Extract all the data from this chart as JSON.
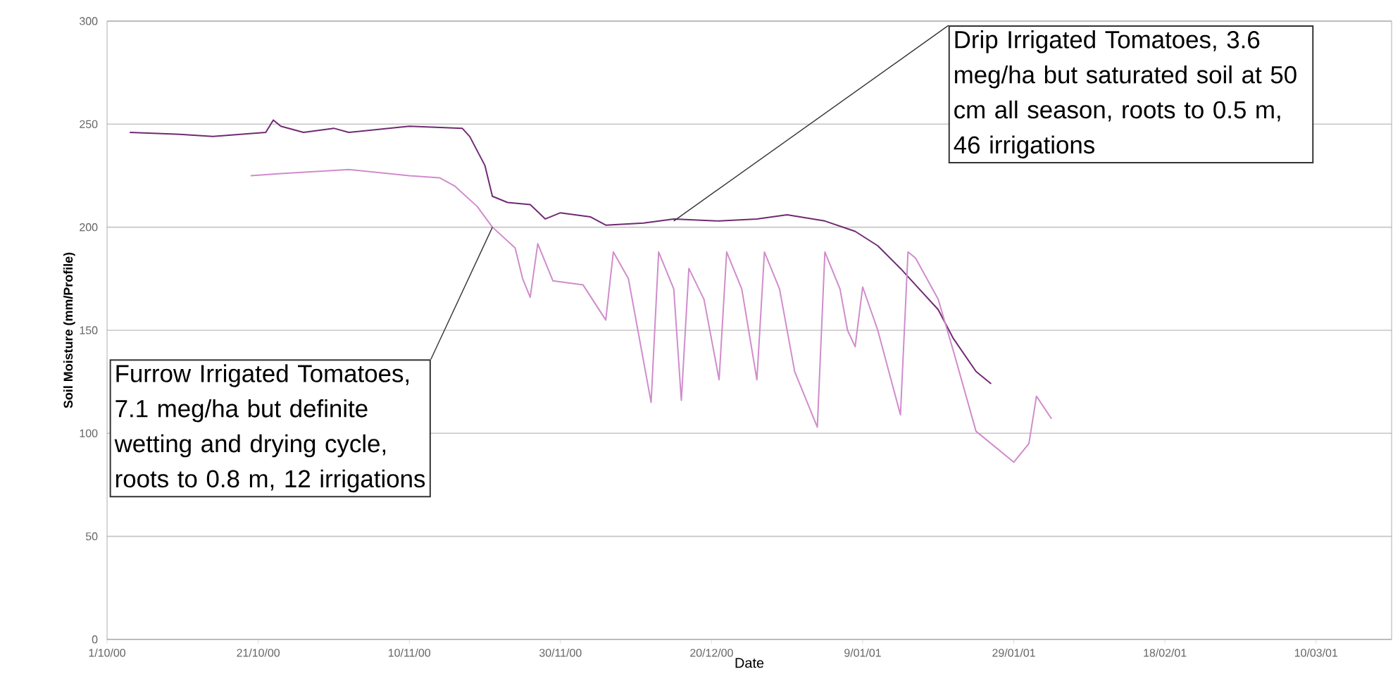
{
  "chart_data": {
    "type": "line",
    "xlabel": "Date",
    "ylabel": "Soil Moisture (mm/Profile)",
    "xlim": [
      "2000-10-01",
      "2001-03-20"
    ],
    "xticks": [
      {
        "value": "2000-10-01",
        "label": "1/10/00"
      },
      {
        "value": "2000-10-21",
        "label": "21/10/00"
      },
      {
        "value": "2000-11-10",
        "label": "10/11/00"
      },
      {
        "value": "2000-11-30",
        "label": "30/11/00"
      },
      {
        "value": "2000-12-20",
        "label": "20/12/00"
      },
      {
        "value": "2001-01-09",
        "label": "9/01/01"
      },
      {
        "value": "2001-01-29",
        "label": "29/01/01"
      },
      {
        "value": "2001-02-18",
        "label": "18/02/01"
      },
      {
        "value": "2001-03-10",
        "label": "10/03/01"
      }
    ],
    "ylim": [
      0,
      300
    ],
    "yticks": [
      0,
      50,
      100,
      150,
      200,
      250,
      300
    ],
    "grid": "y",
    "line_style": "solid",
    "series": [
      {
        "color": "#702a72",
        "x": [
          "2000-10-04",
          "2000-10-11",
          "2000-10-15",
          "2000-10-22",
          "2000-10-23",
          "2000-10-24",
          "2000-10-27",
          "2000-10-31",
          "2000-11-02",
          "2000-11-10",
          "2000-11-17",
          "2000-11-18",
          "2000-11-20",
          "2000-11-21",
          "2000-11-23",
          "2000-11-26",
          "2000-11-28",
          "2000-11-30",
          "2000-12-04",
          "2000-12-06",
          "2000-12-11",
          "2000-12-15",
          "2000-12-21",
          "2000-12-26",
          "2000-12-30",
          "2001-01-04",
          "2001-01-08",
          "2001-01-11",
          "2001-01-14",
          "2001-01-16",
          "2001-01-19",
          "2001-01-21",
          "2001-01-24",
          "2001-01-26"
        ],
        "values": [
          246,
          245,
          244,
          246,
          252,
          249,
          246,
          248,
          246,
          249,
          248,
          244,
          230,
          215,
          212,
          211,
          204,
          207,
          205,
          201,
          202,
          204,
          203,
          204,
          206,
          203,
          198,
          191,
          180,
          172,
          160,
          146,
          130,
          124
        ]
      },
      {
        "color": "#d08ccc",
        "x": [
          "2000-10-20",
          "2000-10-24",
          "2000-11-02",
          "2000-11-10",
          "2000-11-14",
          "2000-11-16",
          "2000-11-19",
          "2000-11-21",
          "2000-11-24",
          "2000-11-25",
          "2000-11-26",
          "2000-11-27",
          "2000-11-29",
          "2000-12-03",
          "2000-12-06",
          "2000-12-07",
          "2000-12-09",
          "2000-12-12",
          "2000-12-13",
          "2000-12-15",
          "2000-12-16",
          "2000-12-17",
          "2000-12-19",
          "2000-12-21",
          "2000-12-22",
          "2000-12-24",
          "2000-12-26",
          "2000-12-27",
          "2000-12-29",
          "2000-12-31",
          "2001-01-03",
          "2001-01-04",
          "2001-01-06",
          "2001-01-07",
          "2001-01-08",
          "2001-01-09",
          "2001-01-11",
          "2001-01-14",
          "2001-01-15",
          "2001-01-16",
          "2001-01-19",
          "2001-01-21",
          "2001-01-24",
          "2001-01-29",
          "2001-01-31",
          "2001-02-01",
          "2001-02-03"
        ],
        "values": [
          225,
          226,
          228,
          225,
          224,
          220,
          210,
          200,
          190,
          175,
          166,
          192,
          174,
          172,
          155,
          188,
          175,
          115,
          188,
          170,
          116,
          180,
          165,
          126,
          188,
          170,
          126,
          188,
          170,
          130,
          103,
          188,
          170,
          150,
          142,
          171,
          150,
          109,
          188,
          185,
          165,
          140,
          101,
          86,
          95,
          118,
          107
        ]
      }
    ],
    "annotations": [
      {
        "text": "Drip Irrigated Tomatoes, 3.6 meg/ha but saturated soil  at 50 cm all season, roots to 0.5 m, 46 irrigations",
        "x": "2000-12-15",
        "y": 203
      },
      {
        "text": "Furrow Irrigated Tomatoes, 7.1 meg/ha but definite wetting and drying cycle, roots to 0.8 m, 12 irrigations",
        "x": "2000-11-21",
        "y": 200
      }
    ]
  }
}
